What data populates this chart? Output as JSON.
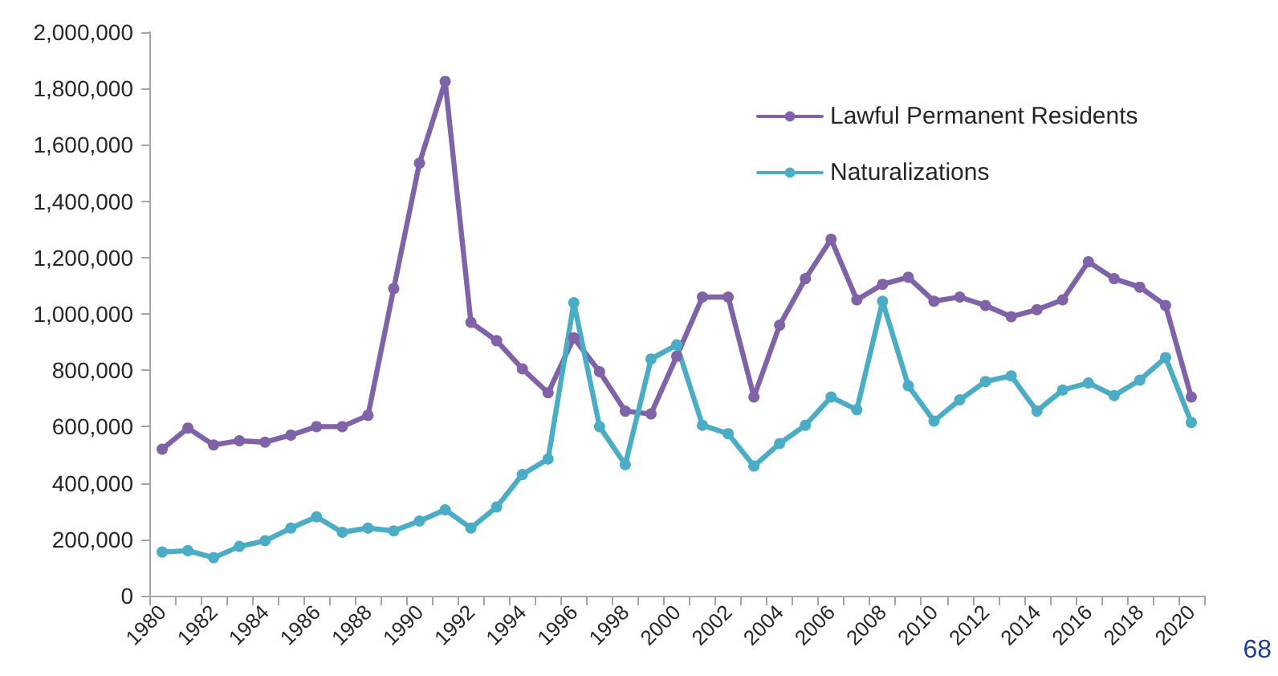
{
  "chart_data": {
    "type": "line",
    "categories": [
      "1980",
      null,
      "1982",
      null,
      "1984",
      null,
      "1986",
      null,
      "1988",
      null,
      "1990",
      null,
      "1992",
      null,
      "1994",
      null,
      "1996",
      null,
      "1998",
      null,
      "2000",
      null,
      "2002",
      null,
      "2004",
      null,
      "2006",
      null,
      "2008",
      null,
      "2010",
      null,
      "2012",
      null,
      "2014",
      null,
      "2016",
      null,
      "2018",
      null,
      "2020"
    ],
    "series": [
      {
        "name": "Lawful Permanent Residents",
        "color": "#7f62a8",
        "values": [
          520000,
          595000,
          535000,
          550000,
          545000,
          570000,
          600000,
          600000,
          640000,
          1090000,
          1535000,
          1825000,
          970000,
          905000,
          805000,
          720000,
          915000,
          795000,
          655000,
          645000,
          850000,
          1060000,
          1060000,
          705000,
          960000,
          1125000,
          1265000,
          1050000,
          1105000,
          1130000,
          1045000,
          1060000,
          1030000,
          990000,
          1015000,
          1050000,
          1185000,
          1125000,
          1095000,
          1030000,
          705000
        ]
      },
      {
        "name": "Naturalizations",
        "color": "#4aacc5",
        "values": [
          155000,
          160000,
          135000,
          175000,
          195000,
          240000,
          280000,
          225000,
          240000,
          230000,
          265000,
          305000,
          240000,
          315000,
          430000,
          485000,
          1040000,
          600000,
          465000,
          840000,
          890000,
          605000,
          575000,
          460000,
          540000,
          605000,
          705000,
          660000,
          1045000,
          745000,
          620000,
          695000,
          760000,
          780000,
          655000,
          730000,
          755000,
          710000,
          765000,
          845000,
          615000
        ]
      }
    ],
    "ylim": [
      0,
      2000000
    ],
    "yticks": [
      0,
      {
        "value": 200000,
        "label": "200,000"
      },
      {
        "value": 400000,
        "label": "400,000"
      },
      {
        "value": 600000,
        "label": "600,000"
      },
      {
        "value": 800000,
        "label": "800,000"
      },
      {
        "value": 1000000,
        "label": "1,000,000"
      },
      {
        "value": 1200000,
        "label": "1,200,000"
      },
      {
        "value": 1400000,
        "label": "1,400,000"
      },
      {
        "value": 1600000,
        "label": "1,600,000"
      },
      {
        "value": 1800000,
        "label": "1,800,000"
      },
      {
        "value": 2000000,
        "label": "2,000,000"
      }
    ],
    "grid": false,
    "legend": "top right",
    "marker": "circle",
    "line_style": "solid",
    "annotations": [
      "68"
    ]
  }
}
